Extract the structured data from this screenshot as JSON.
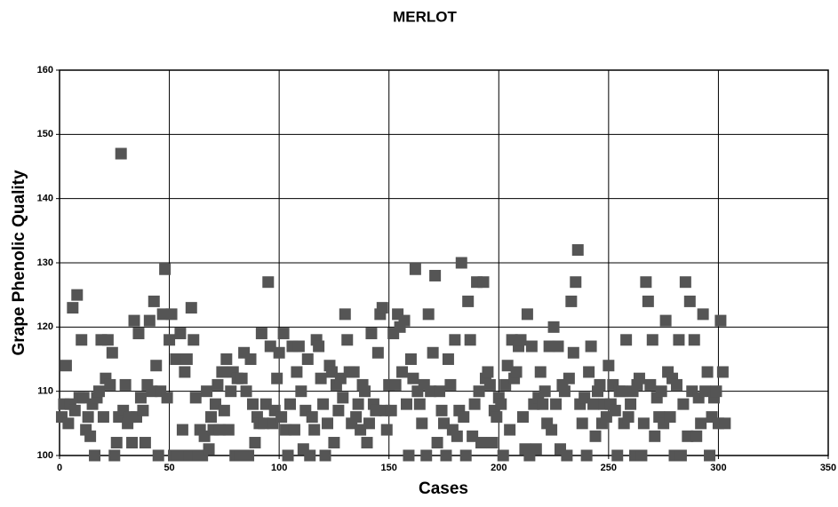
{
  "chart_data": {
    "type": "scatter",
    "title": "MERLOT",
    "x_label": "Cases",
    "y_label": "Grape Phenolic Quality",
    "color": "#555555",
    "grid": true,
    "xlim": [
      0,
      350
    ],
    "xticks": [
      0,
      50,
      100,
      150,
      200,
      250,
      300,
      350
    ],
    "ylim": [
      100,
      160
    ],
    "yticks": [
      100,
      110,
      120,
      130,
      140,
      150,
      160
    ],
    "x": [
      1,
      2,
      3,
      4,
      5,
      6,
      7,
      8,
      9,
      10,
      11,
      12,
      13,
      14,
      15,
      16,
      17,
      18,
      19,
      20,
      21,
      22,
      23,
      24,
      25,
      26,
      27,
      28,
      29,
      30,
      31,
      32,
      33,
      34,
      35,
      36,
      37,
      38,
      39,
      40,
      41,
      42,
      43,
      44,
      45,
      46,
      47,
      48,
      49,
      50,
      51,
      52,
      53,
      54,
      55,
      56,
      57,
      58,
      59,
      60,
      61,
      62,
      63,
      64,
      65,
      66,
      67,
      68,
      69,
      70,
      71,
      72,
      73,
      74,
      75,
      76,
      77,
      78,
      79,
      80,
      81,
      82,
      83,
      84,
      85,
      86,
      87,
      88,
      89,
      90,
      91,
      92,
      93,
      94,
      95,
      96,
      97,
      98,
      99,
      100,
      101,
      102,
      103,
      104,
      105,
      106,
      107,
      108,
      109,
      110,
      111,
      112,
      113,
      114,
      115,
      116,
      117,
      118,
      119,
      120,
      121,
      122,
      123,
      124,
      125,
      126,
      127,
      128,
      129,
      130,
      131,
      132,
      133,
      134,
      135,
      136,
      137,
      138,
      139,
      140,
      141,
      142,
      143,
      144,
      145,
      146,
      147,
      148,
      149,
      150,
      151,
      152,
      153,
      154,
      155,
      156,
      157,
      158,
      159,
      160,
      161,
      162,
      163,
      164,
      165,
      166,
      167,
      168,
      169,
      170,
      171,
      172,
      173,
      174,
      175,
      176,
      177,
      178,
      179,
      180,
      181,
      182,
      183,
      184,
      185,
      186,
      187,
      188,
      189,
      190,
      191,
      192,
      193,
      194,
      195,
      196,
      197,
      198,
      199,
      200,
      201,
      202,
      203,
      204,
      205,
      206,
      207,
      208,
      209,
      210,
      211,
      212,
      213,
      214,
      215,
      216,
      217,
      218,
      219,
      220,
      221,
      222,
      223,
      224,
      225,
      226,
      227,
      228,
      229,
      230,
      231,
      232,
      233,
      234,
      235,
      236,
      237,
      238,
      239,
      240,
      241,
      242,
      243,
      244,
      245,
      246,
      247,
      248,
      249,
      250,
      251,
      252,
      253,
      254,
      255,
      256,
      257,
      258,
      259,
      260,
      261,
      262,
      263,
      264,
      265,
      266,
      267,
      268,
      269,
      270,
      271,
      272,
      273,
      274,
      275,
      276,
      277,
      278,
      279,
      280,
      281,
      282,
      283,
      284,
      285,
      286,
      287,
      288,
      289,
      290,
      291,
      292,
      293,
      294,
      295,
      296,
      297,
      298,
      299,
      300,
      301,
      302,
      303
    ],
    "values": [
      106,
      108,
      114,
      105,
      108,
      123,
      107,
      125,
      109,
      118,
      109,
      104,
      106,
      103,
      108,
      100,
      109,
      110,
      118,
      106,
      112,
      118,
      111,
      116,
      100,
      102,
      106,
      147,
      107,
      111,
      105,
      106,
      102,
      121,
      106,
      119,
      109,
      107,
      102,
      111,
      121,
      110,
      124,
      114,
      100,
      110,
      122,
      129,
      109,
      118,
      122,
      100,
      115,
      100,
      119,
      104,
      113,
      115,
      100,
      123,
      118,
      109,
      100,
      104,
      100,
      103,
      110,
      101,
      106,
      104,
      108,
      111,
      104,
      113,
      107,
      115,
      104,
      110,
      113,
      100,
      112,
      100,
      112,
      116,
      110,
      100,
      115,
      108,
      102,
      106,
      105,
      119,
      105,
      108,
      127,
      117,
      105,
      107,
      112,
      116,
      106,
      119,
      104,
      100,
      108,
      117,
      104,
      113,
      117,
      110,
      101,
      107,
      115,
      100,
      106,
      104,
      118,
      117,
      112,
      108,
      100,
      105,
      114,
      113,
      102,
      111,
      107,
      112,
      109,
      122,
      118,
      113,
      105,
      113,
      106,
      108,
      104,
      111,
      110,
      102,
      105,
      119,
      108,
      107,
      116,
      122,
      123,
      107,
      104,
      111,
      107,
      119,
      111,
      122,
      120,
      113,
      121,
      108,
      100,
      115,
      112,
      129,
      110,
      108,
      105,
      111,
      100,
      122,
      110,
      116,
      128,
      102,
      110,
      107,
      105,
      100,
      115,
      111,
      104,
      118,
      103,
      107,
      130,
      106,
      100,
      124,
      118,
      103,
      108,
      127,
      110,
      102,
      127,
      112,
      113,
      111,
      102,
      107,
      106,
      109,
      108,
      100,
      111,
      114,
      104,
      118,
      112,
      113,
      117,
      118,
      106,
      101,
      122,
      100,
      117,
      108,
      101,
      109,
      113,
      108,
      110,
      105,
      117,
      104,
      120,
      108,
      117,
      101,
      111,
      110,
      100,
      112,
      124,
      116,
      127,
      132,
      108,
      105,
      109,
      100,
      113,
      117,
      108,
      103,
      110,
      111,
      105,
      108,
      106,
      114,
      108,
      111,
      107,
      100,
      110,
      110,
      105,
      118,
      106,
      108,
      110,
      100,
      111,
      112,
      100,
      105,
      127,
      124,
      111,
      118,
      103,
      109,
      106,
      110,
      105,
      121,
      113,
      106,
      112,
      100,
      111,
      118,
      100,
      108,
      127,
      103,
      124,
      110,
      118,
      103,
      109,
      105,
      122,
      110,
      113,
      100,
      106,
      109,
      110,
      105,
      121,
      113,
      105
    ]
  }
}
